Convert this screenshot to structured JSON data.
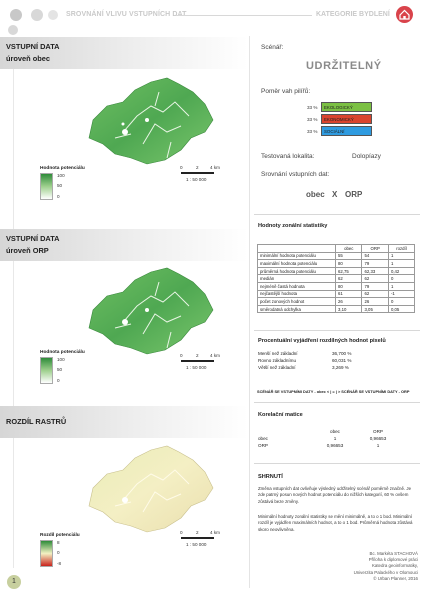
{
  "header": {
    "title": "SROVNÁNÍ VLIVU VSTUPNÍCH DAT",
    "right": "KATEGORIE BYDLENÍ"
  },
  "sections": [
    {
      "title_line1": "VSTUPNÍ DATA",
      "title_line2": "úroveň obec",
      "legend_title": "Hodnota potenciálu",
      "legend_labels": [
        "100",
        "50",
        "0"
      ],
      "scale_labels": [
        "0",
        "2",
        "4 km"
      ],
      "scale_ratio": "1 : 50 000"
    },
    {
      "title_line1": "VSTUPNÍ DATA",
      "title_line2": "úroveň ORP",
      "legend_title": "Hodnota potenciálu",
      "legend_labels": [
        "100",
        "50",
        "0"
      ],
      "scale_labels": [
        "0",
        "2",
        "4 km"
      ],
      "scale_ratio": "1 : 50 000"
    },
    {
      "title_line1": "ROZDÍL RASTRŮ",
      "title_line2": "",
      "legend_title": "Rozdíl potenciálu",
      "legend_labels": [
        "8",
        "0",
        "-8"
      ],
      "scale_labels": [
        "0",
        "2",
        "4 km"
      ],
      "scale_ratio": "1 : 50 000"
    }
  ],
  "scenario": {
    "label": "Scénář:",
    "name": "UDRŽITELNÝ",
    "pillars_label": "Poměr vah pilířů:",
    "pillars": [
      {
        "pct": "33 %",
        "name": "EKOLOGICKÝ",
        "color": "#7bc043"
      },
      {
        "pct": "33 %",
        "name": "EKONOMICKÝ",
        "color": "#d9442e"
      },
      {
        "pct": "33 %",
        "name": "SOCIÁLNÍ",
        "color": "#2f9be0"
      }
    ],
    "locality_label": "Testovaná lokalita:",
    "locality": "Dolopíazy",
    "compare_label": "Srovnání vstupních dat:",
    "compare_a": "obec",
    "compare_x": "X",
    "compare_b": "ORP"
  },
  "zonal": {
    "title": "Hodnoty zonální statistiky",
    "columns": [
      "",
      "obec",
      "ORP",
      "rozdíl"
    ],
    "rows": [
      [
        "minimální hodnota potenciálu",
        "55",
        "54",
        "1"
      ],
      [
        "maximální hodnota potenciálu",
        "80",
        "79",
        "1"
      ],
      [
        "průměrná hodnota potenciálu",
        "62,75",
        "62,33",
        "0,42"
      ],
      [
        "medián",
        "62",
        "62",
        "0"
      ],
      [
        "nejméně častá hodnota",
        "80",
        "79",
        "1"
      ],
      [
        "nejčastější hodnota",
        "61",
        "62",
        "-1"
      ],
      [
        "počet zonových hodnot",
        "26",
        "26",
        "0"
      ],
      [
        "směrodatná odchylka",
        "3,10",
        "3,05",
        "0,05"
      ]
    ]
  },
  "percent": {
    "title": "Procentuální vyjádření rozdílných hodnot pixelů",
    "rows": [
      [
        "Menší než základní",
        "36,700 %"
      ],
      [
        "Rovno základnímu",
        "60,031 %"
      ],
      [
        "Větší než základní",
        "3,269 %"
      ]
    ],
    "comparison_line": "SCÉNÁŘ SE VSTUPNÍMI DATY - obec  < | = | >  SCÉNÁŘ SE VSTUPNÍMI DATY - ORP"
  },
  "correlation": {
    "title": "Korelační matice",
    "columns": [
      "",
      "obec",
      "ORP"
    ],
    "rows": [
      [
        "obec",
        "1",
        "0,96653"
      ],
      [
        "ORP",
        "0,96653",
        "1"
      ]
    ]
  },
  "summary": {
    "title": "SHRNUTÍ",
    "p1": "Změna vstupních dat ovlivňuje výsledný udržitelný scénář poměrně značně. Je zde patrný posun nových hodnot potenciálu do nižších kategorií, 60 % ovšem zůstává beze změny.",
    "p2": "Minimální hodnoty zonální statistiky se mění minimálně, a to o 1 bod. Minimální rozdíl je vyjádřen maximálních hodnot, a to o 1 bod. Průměrná hodnota zůstává skoro neovlivněna."
  },
  "signature": [
    "Bc. Markéta STACHOVÁ",
    "Příloha k diplomové práci",
    "Katedra geoinformatiky,",
    "Univerzita Palackého v Olomouci",
    "© Urban Planner, 2016"
  ],
  "page_number": "1"
}
